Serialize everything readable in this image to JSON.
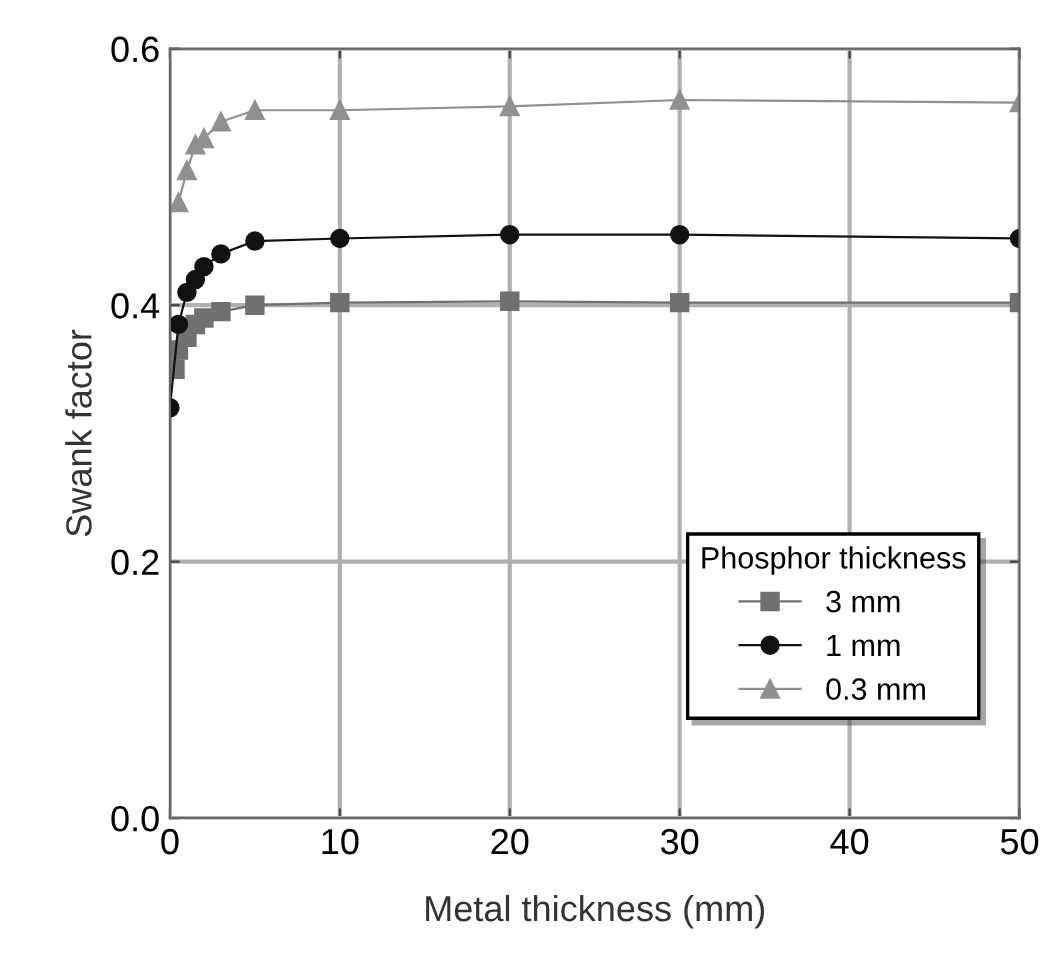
{
  "chart_data": {
    "type": "line",
    "xlabel": "Metal thickness (mm)",
    "ylabel": "Swank factor",
    "legend_title": "Phosphor thickness",
    "xlim": [
      0,
      50
    ],
    "xticks": [
      0,
      10,
      20,
      30,
      40,
      50
    ],
    "ylim": [
      0,
      0.6
    ],
    "yticks": [
      {
        "value": 0,
        "label": "0.0"
      },
      0.2,
      0.4,
      0.6
    ],
    "grid": true,
    "legend": "bottom right",
    "series": [
      {
        "name": "3 mm",
        "color": "#707070",
        "marker": "square",
        "x": [
          0.3,
          0.5,
          1,
          1.5,
          2,
          3,
          5,
          10,
          20,
          30,
          50
        ],
        "values": [
          0.35,
          0.365,
          0.375,
          0.385,
          0.39,
          0.395,
          0.4,
          0.402,
          0.403,
          0.402,
          0.402
        ]
      },
      {
        "name": "1 mm",
        "color": "#111111",
        "marker": "circle",
        "x": [
          0,
          0.5,
          1,
          1.5,
          2,
          3,
          5,
          10,
          20,
          30,
          50
        ],
        "values": [
          0.32,
          0.385,
          0.41,
          0.42,
          0.43,
          0.44,
          0.45,
          0.452,
          0.455,
          0.455,
          0.452
        ]
      },
      {
        "name": "0.3 mm",
        "color": "#909090",
        "marker": "triangle",
        "x": [
          0.5,
          1,
          1.5,
          2,
          3,
          5,
          10,
          20,
          30,
          50
        ],
        "values": [
          0.48,
          0.505,
          0.525,
          0.53,
          0.543,
          0.552,
          0.552,
          0.555,
          0.56,
          0.558
        ]
      }
    ]
  }
}
